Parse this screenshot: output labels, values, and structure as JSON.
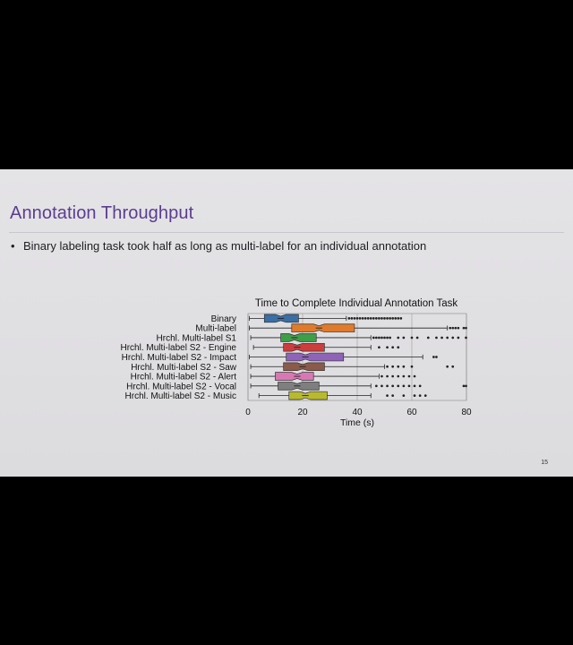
{
  "slide": {
    "title": "Annotation Throughput",
    "bullet_marker": "•",
    "bullet": "Binary labeling task took half as long as multi-label for an individual annotation",
    "page_number": "15"
  },
  "chart_data": {
    "type": "box",
    "title": "Time to Complete Individual Annotation Task",
    "xlabel": "Time (s)",
    "ylabel": "",
    "xlim": [
      0,
      80
    ],
    "xticks": [
      0,
      20,
      40,
      60,
      80
    ],
    "grid": true,
    "categories": [
      "Binary",
      "Multi-label",
      "Hrchl. Multi-label S1",
      "Hrchl. Multi-label S2 - Engine",
      "Hrchl. Multi-label S2 - Impact",
      "Hrchl. Multi-label S2 - Saw",
      "Hrchl. Multi-label S2 - Alert",
      "Hrchl. Multi-label S2 - Vocal",
      "Hrchl. Multi-label S2 - Music"
    ],
    "colors": [
      "#3a6ea5",
      "#e07b2c",
      "#3f9e48",
      "#cc3d3d",
      "#8e63b8",
      "#8b5a4a",
      "#d977b5",
      "#7f7f7f",
      "#b9b92f"
    ],
    "boxes": [
      {
        "whislo": 0.5,
        "q1": 6,
        "med": 12,
        "q3": 18.5,
        "whishi": 36,
        "fliers": [
          37,
          38,
          39,
          40,
          41,
          42,
          43,
          44,
          45,
          46,
          47,
          48,
          49,
          50,
          51,
          52,
          53,
          54,
          55,
          56
        ]
      },
      {
        "whislo": 0.5,
        "q1": 16,
        "med": 26,
        "q3": 39,
        "whishi": 73,
        "fliers": [
          74,
          75,
          76,
          77,
          79,
          80
        ]
      },
      {
        "whislo": 1,
        "q1": 12,
        "med": 17,
        "q3": 25,
        "whishi": 45,
        "fliers": [
          46,
          47,
          48,
          49,
          50,
          51,
          52,
          55,
          57,
          60,
          62,
          66,
          69,
          71,
          73,
          75,
          77,
          80
        ]
      },
      {
        "whislo": 2,
        "q1": 13,
        "med": 18,
        "q3": 28,
        "whishi": 45,
        "fliers": [
          48,
          51,
          53,
          55
        ]
      },
      {
        "whislo": 0.5,
        "q1": 14,
        "med": 21,
        "q3": 35,
        "whishi": 64,
        "fliers": [
          68,
          69
        ]
      },
      {
        "whislo": 1,
        "q1": 13,
        "med": 20,
        "q3": 28,
        "whishi": 50,
        "fliers": [
          51,
          53,
          55,
          57,
          60,
          73,
          75
        ]
      },
      {
        "whislo": 1,
        "q1": 10,
        "med": 18,
        "q3": 24,
        "whishi": 48,
        "fliers": [
          49,
          51,
          53,
          55,
          57,
          59,
          61
        ]
      },
      {
        "whislo": 1,
        "q1": 11,
        "med": 18,
        "q3": 26,
        "whishi": 45,
        "fliers": [
          47,
          49,
          51,
          53,
          55,
          57,
          59,
          61,
          63,
          79,
          81
        ]
      },
      {
        "whislo": 4,
        "q1": 15,
        "med": 21,
        "q3": 29,
        "whishi": 45,
        "fliers": [
          51,
          53,
          57,
          61,
          63,
          65
        ]
      }
    ]
  }
}
